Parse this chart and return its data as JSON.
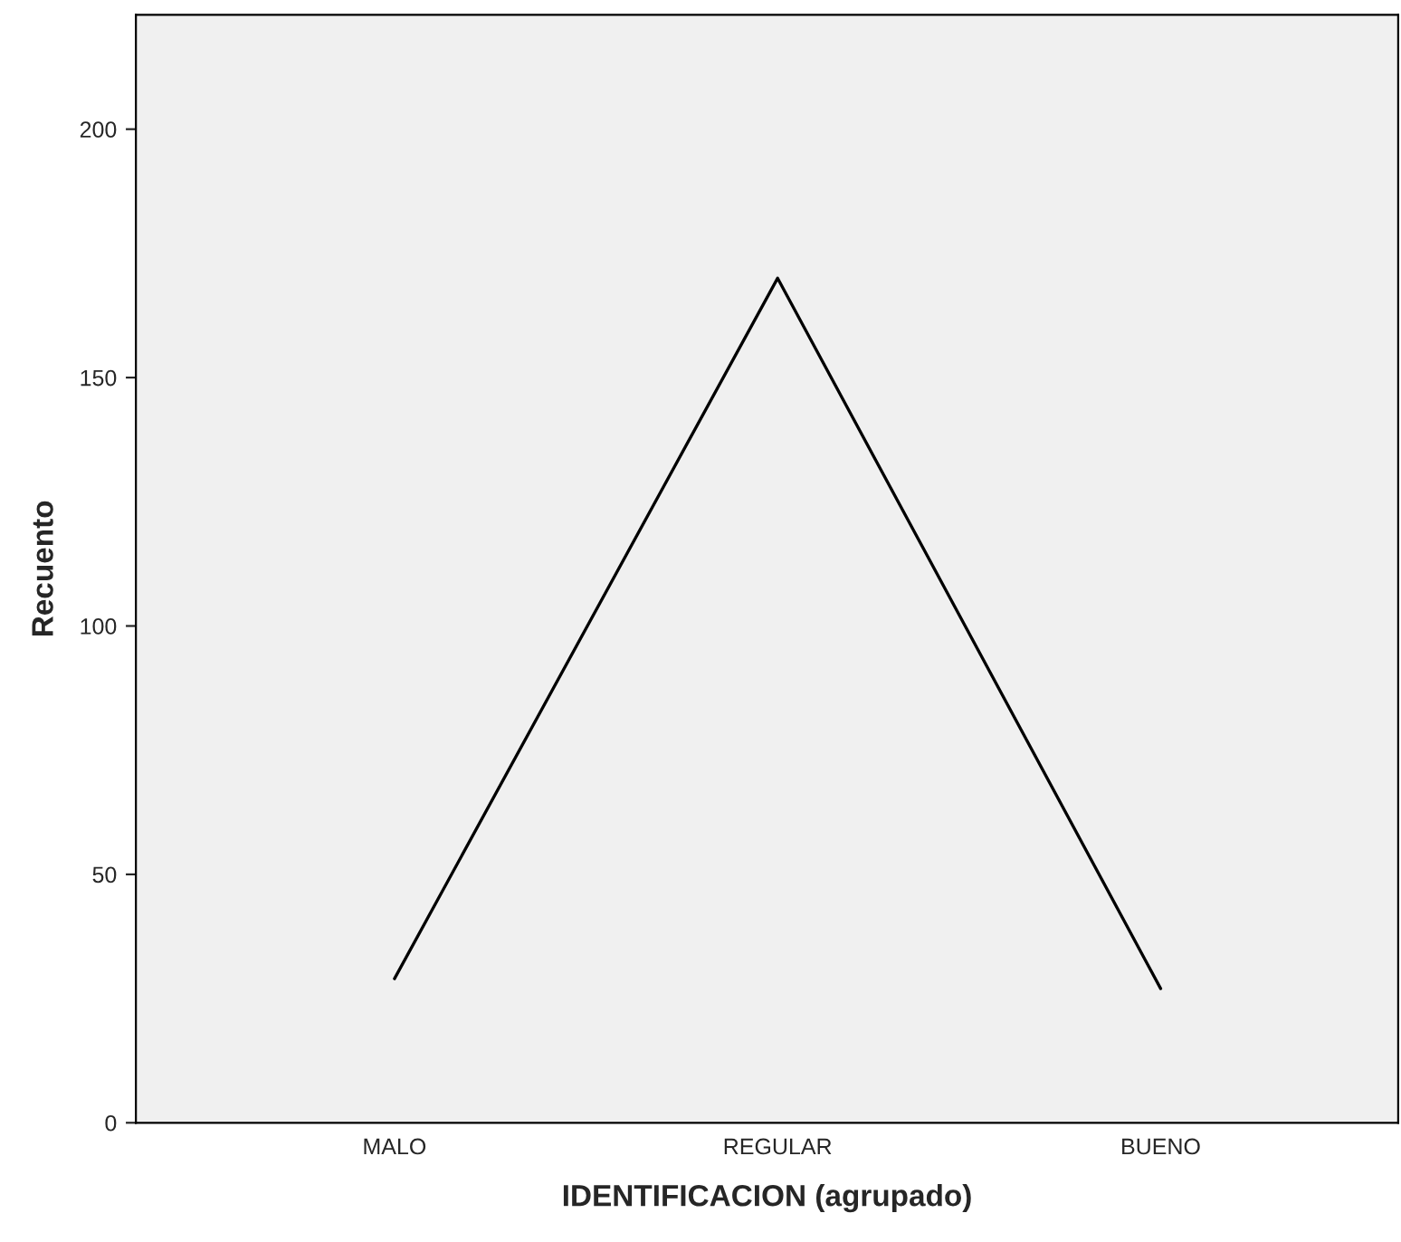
{
  "chart_data": {
    "type": "line",
    "categories": [
      "MALO",
      "REGULAR",
      "BUENO"
    ],
    "series": [
      {
        "color": "#000000",
        "values": [
          29,
          170,
          27
        ]
      }
    ],
    "xlabel": "IDENTIFICACION (agrupado)",
    "ylabel": "Recuento",
    "ylim": [
      0,
      223
    ],
    "yticks": [
      0,
      50,
      100,
      150,
      200
    ],
    "grid": false,
    "legend": false,
    "marker": "none",
    "line_style": "solid"
  }
}
